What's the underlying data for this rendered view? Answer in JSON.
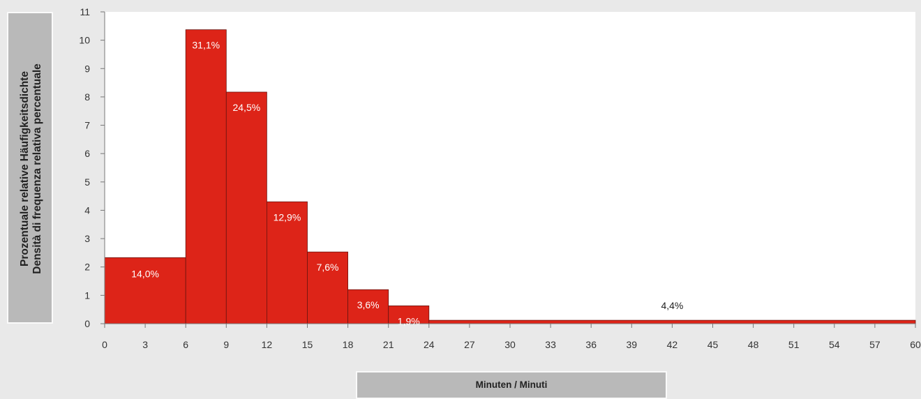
{
  "chart_data": {
    "type": "bar",
    "xlabel": "Minuten / Minuti",
    "ylabel_line1": "Prozentuale relative Häufigkeitsdichte",
    "ylabel_line2": "Densità di frequenza relativa percentuale",
    "ylim": [
      0,
      11
    ],
    "xlim": [
      0,
      60
    ],
    "y_ticks": [
      0,
      1,
      2,
      3,
      4,
      5,
      6,
      7,
      8,
      9,
      10,
      11
    ],
    "x_ticks": [
      0,
      3,
      6,
      9,
      12,
      15,
      18,
      21,
      24,
      27,
      30,
      33,
      36,
      39,
      42,
      45,
      48,
      51,
      54,
      57,
      60
    ],
    "bins": [
      {
        "from": 0,
        "to": 6,
        "density": 2.33,
        "label": "14,0%"
      },
      {
        "from": 6,
        "to": 9,
        "density": 10.37,
        "label": "31,1%"
      },
      {
        "from": 9,
        "to": 12,
        "density": 8.17,
        "label": "24,5%"
      },
      {
        "from": 12,
        "to": 15,
        "density": 4.3,
        "label": "12,9%"
      },
      {
        "from": 15,
        "to": 18,
        "density": 2.53,
        "label": "7,6%"
      },
      {
        "from": 18,
        "to": 21,
        "density": 1.2,
        "label": "3,6%"
      },
      {
        "from": 21,
        "to": 24,
        "density": 0.63,
        "label": "1,9%"
      },
      {
        "from": 24,
        "to": 60,
        "density": 0.12,
        "label": "4,4%"
      }
    ],
    "grid": false,
    "colors": {
      "bar": "#dd2418",
      "bar_edge": "#6a1410",
      "axis": "#777777",
      "plot_bg": "#ffffff"
    }
  }
}
